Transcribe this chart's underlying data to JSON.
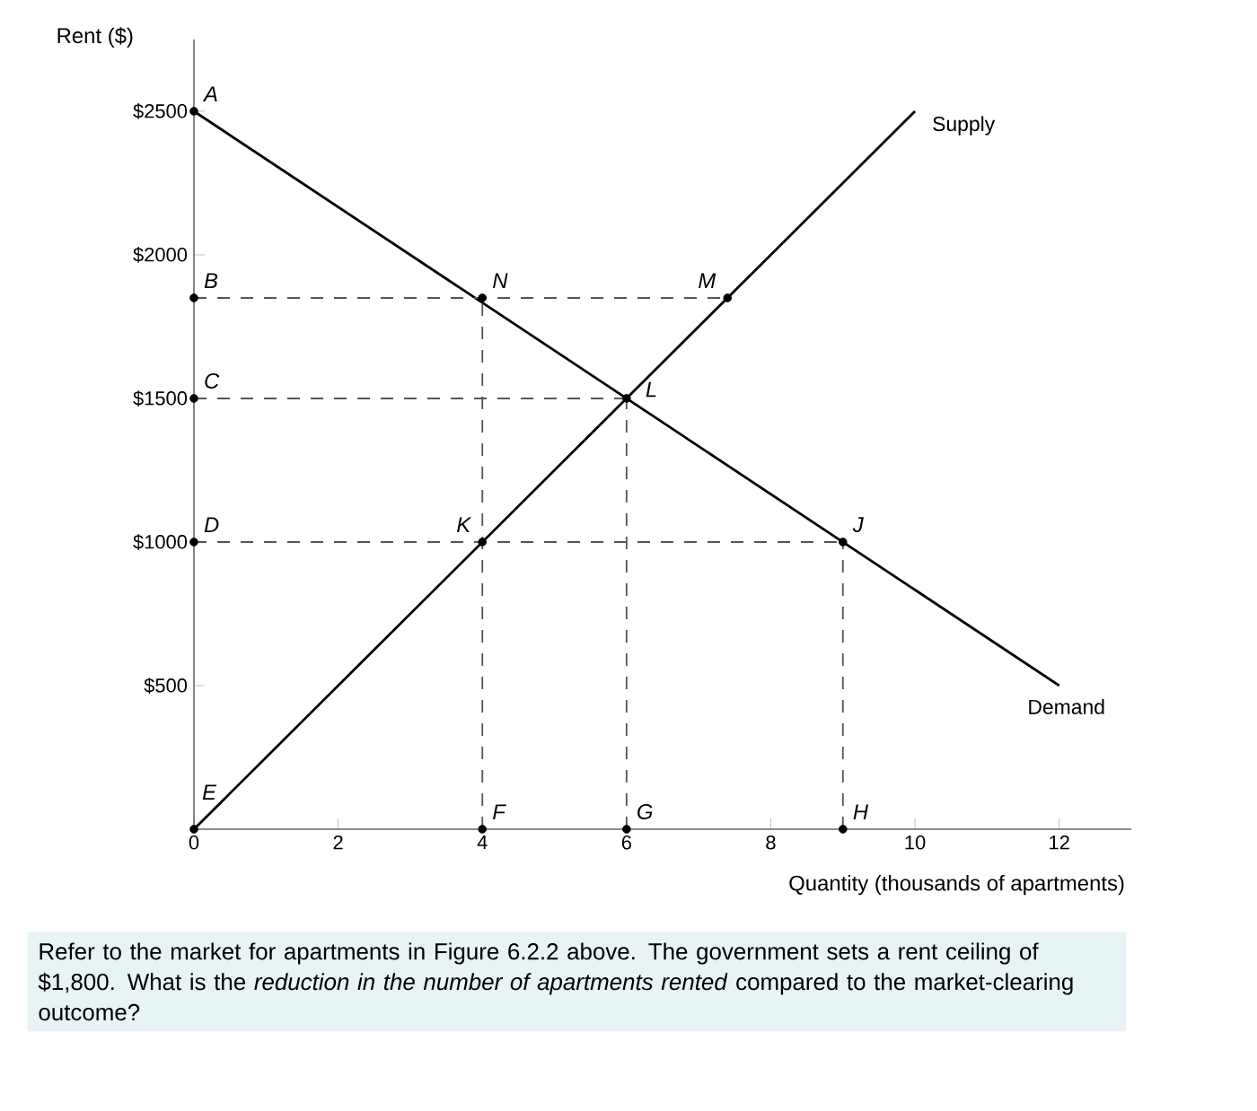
{
  "chart_data": {
    "type": "line",
    "xlabel": "Quantity (thousands of apartments)",
    "ylabel": "Rent ($)",
    "xlim": [
      0,
      13
    ],
    "ylim": [
      0,
      2750
    ],
    "xticks": [
      0,
      2,
      4,
      6,
      8,
      10,
      12
    ],
    "yticks": [
      {
        "value": 500,
        "label": "$500"
      },
      {
        "value": 1000,
        "label": "$1000"
      },
      {
        "value": 1500,
        "label": "$1500"
      },
      {
        "value": 2000,
        "label": "$2000"
      },
      {
        "value": 2500,
        "label": "$2500"
      }
    ],
    "grid": false,
    "series": [
      {
        "name": "Demand",
        "color": "#000000",
        "x": [
          0,
          12
        ],
        "values": [
          2500,
          500
        ]
      },
      {
        "name": "Supply",
        "color": "#000000",
        "x": [
          0,
          10
        ],
        "values": [
          0,
          2500
        ]
      },
      {
        "color": "#555555",
        "line_style": "dashed",
        "x": [
          0,
          7.4
        ],
        "values": [
          1850,
          1850
        ]
      },
      {
        "color": "#555555",
        "line_style": "dashed",
        "x": [
          0,
          6
        ],
        "values": [
          1500,
          1500
        ]
      },
      {
        "color": "#555555",
        "line_style": "dashed",
        "x": [
          0,
          9
        ],
        "values": [
          1000,
          1000
        ]
      },
      {
        "color": "#555555",
        "line_style": "dashed",
        "x": [
          4,
          4
        ],
        "values": [
          0,
          1850
        ]
      },
      {
        "color": "#555555",
        "line_style": "dashed",
        "x": [
          6,
          6
        ],
        "values": [
          0,
          1500
        ]
      },
      {
        "color": "#555555",
        "line_style": "dashed",
        "x": [
          9,
          9
        ],
        "values": [
          0,
          1000
        ]
      },
      {
        "type": "scatter",
        "marker": "circle",
        "color": "#000000",
        "x": [
          0,
          0,
          0,
          0,
          0,
          4,
          4,
          6,
          7.4,
          9,
          4,
          6,
          9
        ],
        "values": [
          2500,
          1850,
          1500,
          1000,
          0,
          1850,
          1000,
          1500,
          1850,
          1000,
          0,
          0,
          0
        ]
      }
    ],
    "annotations": [
      {
        "text": "A",
        "x": 0,
        "y": 2500
      },
      {
        "text": "B",
        "x": 0,
        "y": 1850
      },
      {
        "text": "C",
        "x": 0,
        "y": 1500
      },
      {
        "text": "D",
        "x": 0,
        "y": 1000
      },
      {
        "text": "E",
        "x": 0,
        "y": 0
      },
      {
        "text": "N",
        "x": 4,
        "y": 1850
      },
      {
        "text": "K",
        "x": 4,
        "y": 1000
      },
      {
        "text": "L",
        "x": 6,
        "y": 1500
      },
      {
        "text": "M",
        "x": 7.4,
        "y": 1850
      },
      {
        "text": "J",
        "x": 9,
        "y": 1000
      },
      {
        "text": "F",
        "x": 4,
        "y": 0
      },
      {
        "text": "G",
        "x": 6,
        "y": 0
      },
      {
        "text": "H",
        "x": 9,
        "y": 0
      },
      "Refer to the market for apartments in Figure 6.2.2 above. The government sets a rent ceiling of $1,800. What is the *reduction in the number of apartments rented* compared to the market-clearing outcome?"
    ]
  }
}
